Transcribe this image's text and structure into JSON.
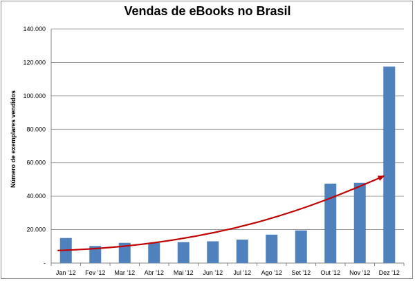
{
  "chart_data": {
    "type": "bar",
    "title": "Vendas de eBooks no Brasil",
    "xlabel": "",
    "ylabel": "Número de exemplares vendidos",
    "categories": [
      "Jan '12",
      "Fev '12",
      "Mar '12",
      "Abr '12",
      "Mai '12",
      "Jun '12",
      "Jul '12",
      "Ago '12",
      "Set '12",
      "Out '12",
      "Nov '12",
      "Dez '12"
    ],
    "values": [
      15000,
      10200,
      12100,
      12100,
      12500,
      13000,
      14000,
      17000,
      19500,
      47500,
      48000,
      117500
    ],
    "ylim": [
      0,
      140000
    ],
    "yticks": [
      0,
      20000,
      40000,
      60000,
      80000,
      100000,
      120000,
      140000
    ],
    "ytick_labels": [
      "-",
      "20.000",
      "40.000",
      "60.000",
      "80.000",
      "100.000",
      "120.000",
      "140.000"
    ],
    "grid": true,
    "legend": "none",
    "bar_color": "#4f81bd",
    "trend_arrow": {
      "color": "#c00000",
      "from": 7500,
      "to": 52000
    }
  }
}
